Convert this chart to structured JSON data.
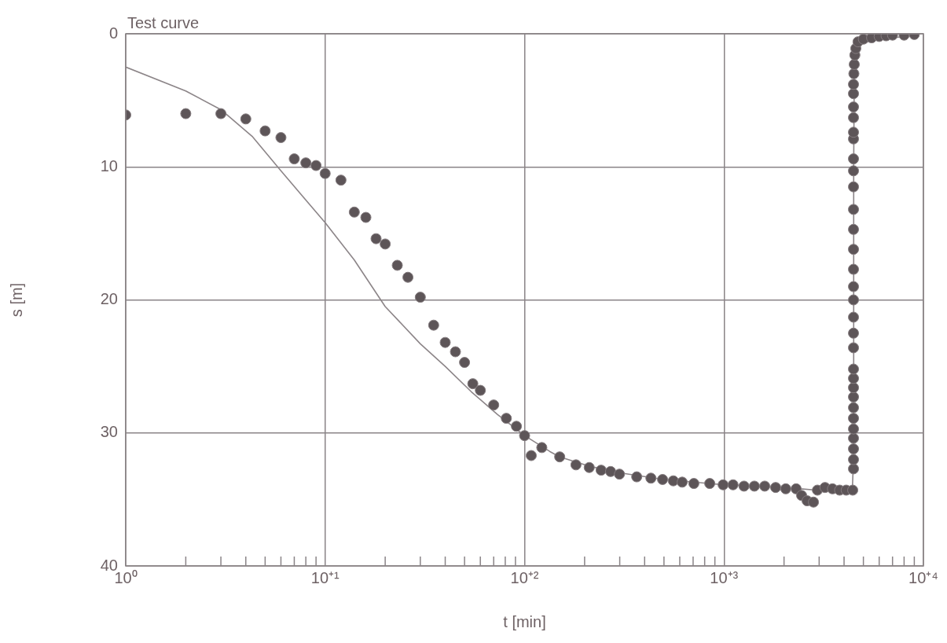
{
  "chart_data": {
    "type": "scatter",
    "title": "Test curve",
    "xlabel": "t [min]",
    "ylabel": "s [m]",
    "log": "x",
    "grid": true,
    "xlim": [
      1,
      10000
    ],
    "ylim": [
      40,
      0
    ],
    "xticks": [
      {
        "value": 1,
        "label": "10⁰"
      },
      {
        "value": 2,
        "label": null
      },
      {
        "value": 3,
        "label": null
      },
      {
        "value": 4,
        "label": null
      },
      {
        "value": 5,
        "label": null
      },
      {
        "value": 6,
        "label": null
      },
      {
        "value": 7,
        "label": null
      },
      {
        "value": 8,
        "label": null
      },
      {
        "value": 9,
        "label": null
      },
      {
        "value": 10,
        "label": "10⁺¹"
      },
      {
        "value": 20,
        "label": null
      },
      {
        "value": 30,
        "label": null
      },
      {
        "value": 40,
        "label": null
      },
      {
        "value": 50,
        "label": null
      },
      {
        "value": 60,
        "label": null
      },
      {
        "value": 70,
        "label": null
      },
      {
        "value": 80,
        "label": null
      },
      {
        "value": 90,
        "label": null
      },
      {
        "value": 100,
        "label": "10⁺²"
      },
      {
        "value": 200,
        "label": null
      },
      {
        "value": 300,
        "label": null
      },
      {
        "value": 400,
        "label": null
      },
      {
        "value": 500,
        "label": null
      },
      {
        "value": 600,
        "label": null
      },
      {
        "value": 700,
        "label": null
      },
      {
        "value": 800,
        "label": null
      },
      {
        "value": 900,
        "label": null
      },
      {
        "value": 1000,
        "label": "10⁺³"
      },
      {
        "value": 2000,
        "label": null
      },
      {
        "value": 3000,
        "label": null
      },
      {
        "value": 4000,
        "label": null
      },
      {
        "value": 5000,
        "label": null
      },
      {
        "value": 6000,
        "label": null
      },
      {
        "value": 7000,
        "label": null
      },
      {
        "value": 8000,
        "label": null
      },
      {
        "value": 9000,
        "label": null
      },
      {
        "value": 10000,
        "label": "10⁺⁴"
      }
    ],
    "yticks": [
      0,
      10,
      20,
      30,
      40
    ],
    "series": [
      {
        "type": "line",
        "color": "#8c8588",
        "line_style": "solid",
        "marker": "none",
        "x": [
          1,
          2,
          3,
          4.3,
          6,
          10,
          14,
          20,
          30,
          40,
          54,
          73,
          100,
          134,
          150,
          211,
          300,
          500,
          1000,
          2000,
          2900,
          4400,
          4460,
          4470,
          4500,
          4800,
          5500,
          9000
        ],
        "values": [
          2.5,
          4.3,
          5.7,
          7.7,
          10.3,
          14.2,
          17.0,
          20.5,
          23.3,
          25.0,
          26.9,
          28.6,
          30.2,
          31.4,
          31.8,
          32.5,
          33.0,
          33.5,
          33.9,
          34.1,
          34.3,
          34.3,
          32.0,
          10.0,
          3.0,
          0.8,
          0.5,
          0.1
        ]
      },
      {
        "color": "#5d5558",
        "marker": "circle",
        "x": [
          1,
          2,
          3,
          4,
          5,
          6,
          7,
          8,
          9,
          10,
          12,
          14,
          16,
          18,
          20,
          23,
          26,
          30,
          35,
          40,
          45,
          50,
          55,
          60,
          70,
          81,
          91,
          100,
          108,
          122,
          150,
          181,
          211,
          242,
          270,
          299,
          365,
          430,
          492,
          557,
          617,
          706,
          848,
          990,
          1110,
          1260,
          1420,
          1600,
          1815,
          2040,
          2300,
          2450,
          2610,
          2810,
          2940,
          3210,
          3500,
          3800,
          4100,
          4420,
          4460,
          4460,
          4460,
          4460,
          4460,
          4460,
          4460,
          4460,
          4460,
          4460,
          4460,
          4460,
          4460,
          4460,
          4460,
          4460,
          4460,
          4460,
          4460,
          4460,
          4460,
          4460,
          4460,
          4460,
          4460,
          4460,
          4460,
          4460,
          4460,
          4480,
          4500,
          4530,
          4580,
          4700,
          5000,
          5500,
          6000,
          6500,
          7000,
          8000,
          9000
        ],
        "values": [
          6.1,
          6.0,
          6.0,
          6.4,
          7.3,
          7.8,
          9.4,
          9.7,
          9.9,
          10.5,
          11.0,
          13.4,
          13.8,
          15.4,
          15.8,
          17.4,
          18.3,
          19.8,
          21.9,
          23.2,
          23.9,
          24.7,
          26.3,
          26.8,
          27.9,
          28.9,
          29.5,
          30.2,
          31.7,
          31.1,
          31.8,
          32.4,
          32.6,
          32.8,
          32.9,
          33.1,
          33.3,
          33.4,
          33.5,
          33.6,
          33.7,
          33.8,
          33.8,
          33.9,
          33.9,
          34.0,
          34.0,
          34.0,
          34.1,
          34.2,
          34.2,
          34.7,
          35.1,
          35.2,
          34.3,
          34.1,
          34.2,
          34.3,
          34.3,
          34.3,
          32.7,
          32.0,
          31.2,
          30.4,
          29.7,
          28.9,
          28.1,
          27.3,
          26.6,
          25.9,
          25.2,
          23.6,
          22.5,
          21.3,
          20.0,
          19.0,
          17.7,
          16.2,
          14.7,
          13.2,
          11.5,
          10.3,
          9.4,
          7.9,
          7.4,
          6.3,
          5.5,
          4.5,
          3.8,
          3.0,
          2.3,
          1.6,
          1.1,
          0.6,
          0.4,
          0.3,
          0.2,
          0.15,
          0.1,
          0.1,
          0.05
        ]
      }
    ]
  }
}
